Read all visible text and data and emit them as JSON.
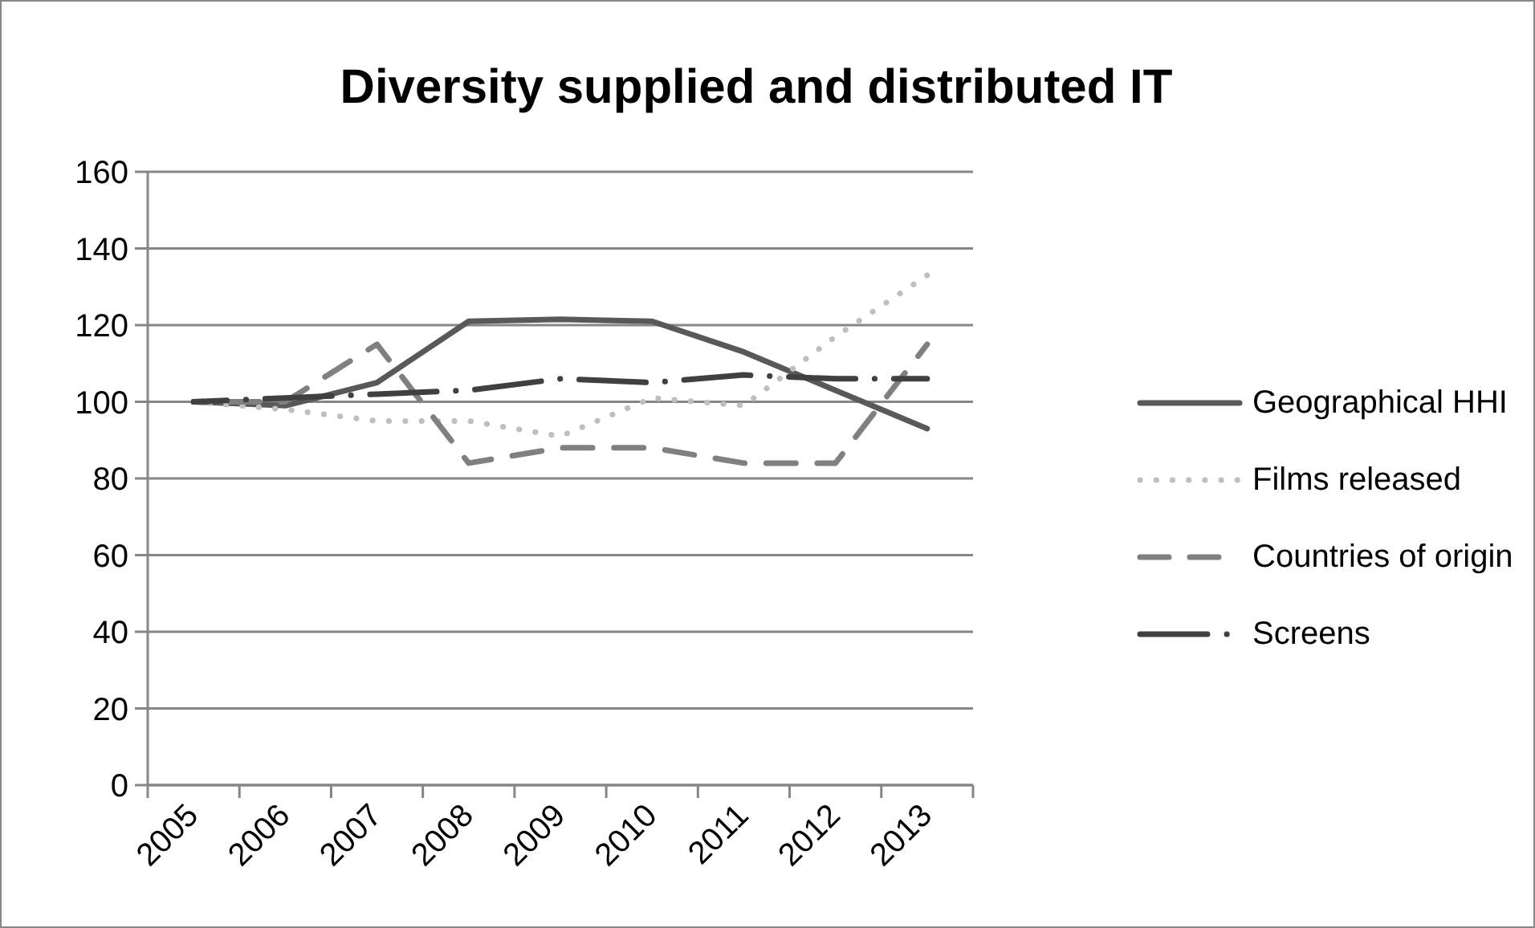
{
  "chart_data": {
    "type": "line",
    "title": "Diversity supplied and distributed IT",
    "categories": [
      "2005",
      "2006",
      "2007",
      "2008",
      "2009",
      "2010",
      "2011",
      "2012",
      "2013"
    ],
    "series": [
      {
        "name": "Geographical HHI",
        "color": "#595959",
        "line_style": "solid",
        "values": [
          100,
          99,
          105,
          121,
          121.5,
          121,
          113,
          103,
          93
        ]
      },
      {
        "name": "Films released",
        "color": "#bfbfbf",
        "line_style": "dotted",
        "values": [
          100,
          98,
          95,
          95,
          91,
          101,
          99,
          117,
          133
        ]
      },
      {
        "name": "Countries of origin",
        "color": "#808080",
        "line_style": "dashed",
        "values": [
          100,
          100,
          115,
          84,
          88,
          88,
          84,
          84,
          115
        ]
      },
      {
        "name": "Screens",
        "color": "#404040",
        "line_style": "dashdot",
        "values": [
          100,
          101,
          102,
          103,
          106,
          105,
          107,
          106,
          106
        ]
      }
    ],
    "ylim": [
      0,
      160
    ],
    "yticks": [
      0,
      20,
      40,
      60,
      80,
      100,
      120,
      140,
      160
    ],
    "grid": "y",
    "legend": "right",
    "marker": "none"
  }
}
